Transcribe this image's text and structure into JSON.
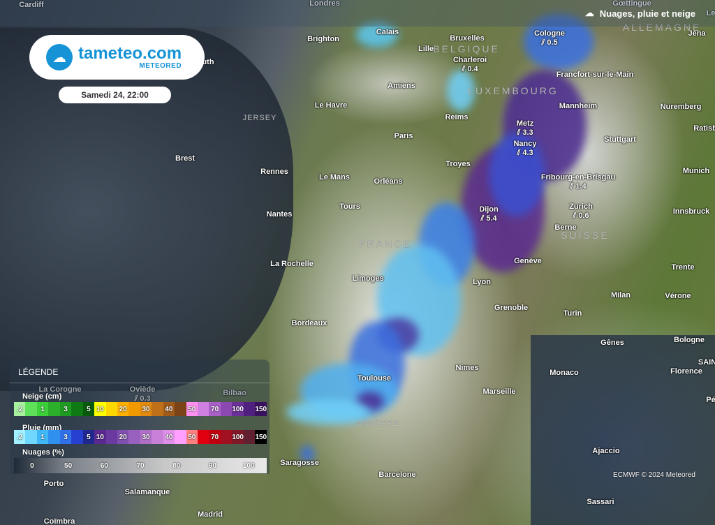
{
  "header": {
    "title": "Nuages, pluie et neige",
    "icon": "cloud-rain-snow-icon"
  },
  "logo": {
    "name": "tameteo.com",
    "sub": "METEORED"
  },
  "date": "Samedi 24, 22:00",
  "countries": [
    "BELGIQUE",
    "LUXEMBOURG",
    "ALLEMAGNE",
    "FRANCE",
    "SUISSE",
    "ANDORRE",
    "JERSEY"
  ],
  "cities": [
    {
      "name": "Cardiff"
    },
    {
      "name": "Londres"
    },
    {
      "name": "Gœttingue"
    },
    {
      "name": "Brighton"
    },
    {
      "name": "Calais"
    },
    {
      "name": "Bruxelles"
    },
    {
      "name": "Cologne",
      "precip": "0.5"
    },
    {
      "name": "Jena"
    },
    {
      "name": "Lille"
    },
    {
      "name": "Charleroi",
      "precip": "0.4"
    },
    {
      "name": "Francfort-sur-le-Main"
    },
    {
      "name": "Amiens"
    },
    {
      "name": "Mannheim"
    },
    {
      "name": "Nuremberg"
    },
    {
      "name": "Le Havre"
    },
    {
      "name": "Reims"
    },
    {
      "name": "Metz",
      "precip": "3.3"
    },
    {
      "name": "Ratisb"
    },
    {
      "name": "Paris"
    },
    {
      "name": "Nancy",
      "precip": "4.3"
    },
    {
      "name": "Stuttgart"
    },
    {
      "name": "Brest"
    },
    {
      "name": "Troyes"
    },
    {
      "name": "Munich"
    },
    {
      "name": "Rennes"
    },
    {
      "name": "Le Mans"
    },
    {
      "name": "Orléans"
    },
    {
      "name": "Fribourg-en-Brisgau",
      "precip": "1.4"
    },
    {
      "name": "Nantes"
    },
    {
      "name": "Tours"
    },
    {
      "name": "Dijon",
      "precip": "5.4"
    },
    {
      "name": "Zurich",
      "precip": "0.6"
    },
    {
      "name": "Innsbruck"
    },
    {
      "name": "Berne"
    },
    {
      "name": "Genève"
    },
    {
      "name": "Trente"
    },
    {
      "name": "La Rochelle"
    },
    {
      "name": "Limoges"
    },
    {
      "name": "Lyon"
    },
    {
      "name": "Milan"
    },
    {
      "name": "Vérone"
    },
    {
      "name": "Grenoble"
    },
    {
      "name": "Turin"
    },
    {
      "name": "Bordeaux"
    },
    {
      "name": "Bologne"
    },
    {
      "name": "Gênes"
    },
    {
      "name": "Nimes"
    },
    {
      "name": "Monaco"
    },
    {
      "name": "Florence"
    },
    {
      "name": "Toulouse"
    },
    {
      "name": "Marseille"
    },
    {
      "name": "Saragosse"
    },
    {
      "name": "Ajaccio"
    },
    {
      "name": "Barcelone"
    },
    {
      "name": "Porto"
    },
    {
      "name": "Salamanque"
    },
    {
      "name": "Madrid"
    },
    {
      "name": "Sassari"
    },
    {
      "name": "Coïmbra"
    },
    {
      "name": "La Corogne"
    },
    {
      "name": "Oviède",
      "precip": "0.3"
    },
    {
      "name": "Bilbao"
    },
    {
      "name": "uth"
    },
    {
      "name": "Le"
    },
    {
      "name": "SAIN"
    },
    {
      "name": "Pé"
    }
  ],
  "legend": {
    "title": "LÉGENDE",
    "snow": {
      "label": "Neige (cm)",
      "steps": [
        [
          ".2",
          "#a8f0a0"
        ],
        [
          "",
          "#5ee05a"
        ],
        [
          "1",
          "#3ccf3a"
        ],
        [
          "",
          "#2cb02c"
        ],
        [
          "3",
          "#1f9a22"
        ],
        [
          "",
          "#0f7a14"
        ],
        [
          "5",
          "#085a0c"
        ],
        [
          "10",
          "#ffff00"
        ],
        [
          "",
          "#ffd700"
        ],
        [
          "20",
          "#ffb000"
        ],
        [
          "",
          "#f09a00"
        ],
        [
          "30",
          "#e08a10"
        ],
        [
          "",
          "#c07018"
        ],
        [
          "40",
          "#a05a1a"
        ],
        [
          "",
          "#7a4418"
        ],
        [
          "50",
          "#ff90f0"
        ],
        [
          "",
          "#d080e0"
        ],
        [
          "70",
          "#a860c8"
        ],
        [
          "",
          "#8a48b0"
        ],
        [
          "100",
          "#6a3098"
        ],
        [
          "",
          "#502080"
        ],
        [
          "150",
          "#3a1060"
        ]
      ]
    },
    "rain": {
      "label": "Pluie (mm)",
      "steps": [
        [
          ".2",
          "#a0f0ff"
        ],
        [
          "",
          "#70d8ff"
        ],
        [
          "1",
          "#40b8f8"
        ],
        [
          "",
          "#3090f0"
        ],
        [
          "3",
          "#3070e8"
        ],
        [
          "",
          "#2840d0"
        ],
        [
          "5",
          "#202890"
        ],
        [
          "10",
          "#5a2a90"
        ],
        [
          "",
          "#6a3aa0"
        ],
        [
          "20",
          "#8050b0"
        ],
        [
          "",
          "#9a60c0"
        ],
        [
          "30",
          "#b070c8"
        ],
        [
          "",
          "#c880d8"
        ],
        [
          "40",
          "#e090e8"
        ],
        [
          "",
          "#ffa0ff"
        ],
        [
          "50",
          "#ff8080"
        ],
        [
          "",
          "#e00010"
        ],
        [
          "70",
          "#c00010"
        ],
        [
          "",
          "#a01020"
        ],
        [
          "100",
          "#801828"
        ],
        [
          "",
          "#602030"
        ],
        [
          "150",
          "#000000"
        ]
      ]
    },
    "clouds": {
      "label": "Nuages (%)",
      "ticks": [
        "0",
        "50",
        "60",
        "70",
        "80",
        "90",
        "100"
      ]
    }
  },
  "credit": "ECMWF © 2024 Meteored",
  "colors": {
    "brand": "#1593d6"
  }
}
